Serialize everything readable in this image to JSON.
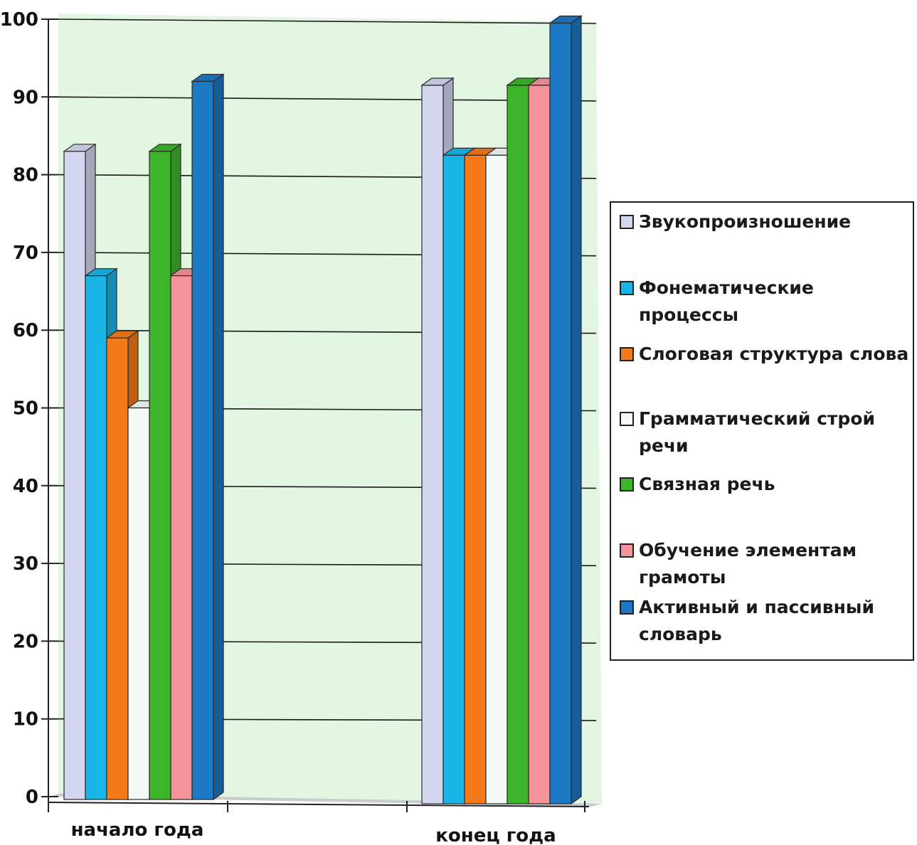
{
  "chart_data": {
    "type": "bar",
    "categories": [
      "начало года",
      "конец года"
    ],
    "series": [
      {
        "name": "Звукопроизношение",
        "values": [
          83,
          91.5
        ],
        "color": "#d3d6ee"
      },
      {
        "name": "Фонематические процессы",
        "values": [
          67,
          82.5
        ],
        "color": "#19b5e6"
      },
      {
        "name": "Слоговая структура слова",
        "values": [
          59,
          82.5
        ],
        "color": "#f47a1a"
      },
      {
        "name": "Грамматический строй речи",
        "values": [
          50,
          82.5
        ],
        "color": "#f4f8f6"
      },
      {
        "name": "Связная речь",
        "values": [
          83,
          91.5
        ],
        "color": "#3cb52a"
      },
      {
        "name": "Обучение элементам грамоты",
        "values": [
          67,
          91.5
        ],
        "color": "#f4949a"
      },
      {
        "name": "Активный и пассивный словарь",
        "values": [
          92,
          99.5
        ],
        "color": "#1b78c4"
      }
    ],
    "yticks": [
      "0",
      "10",
      "20",
      "30",
      "40",
      "50",
      "60",
      "70",
      "80",
      "90",
      "100"
    ],
    "ylim": [
      0,
      100
    ],
    "grid": true,
    "legend_position": "right",
    "plot_background": "#e2f6e2"
  }
}
